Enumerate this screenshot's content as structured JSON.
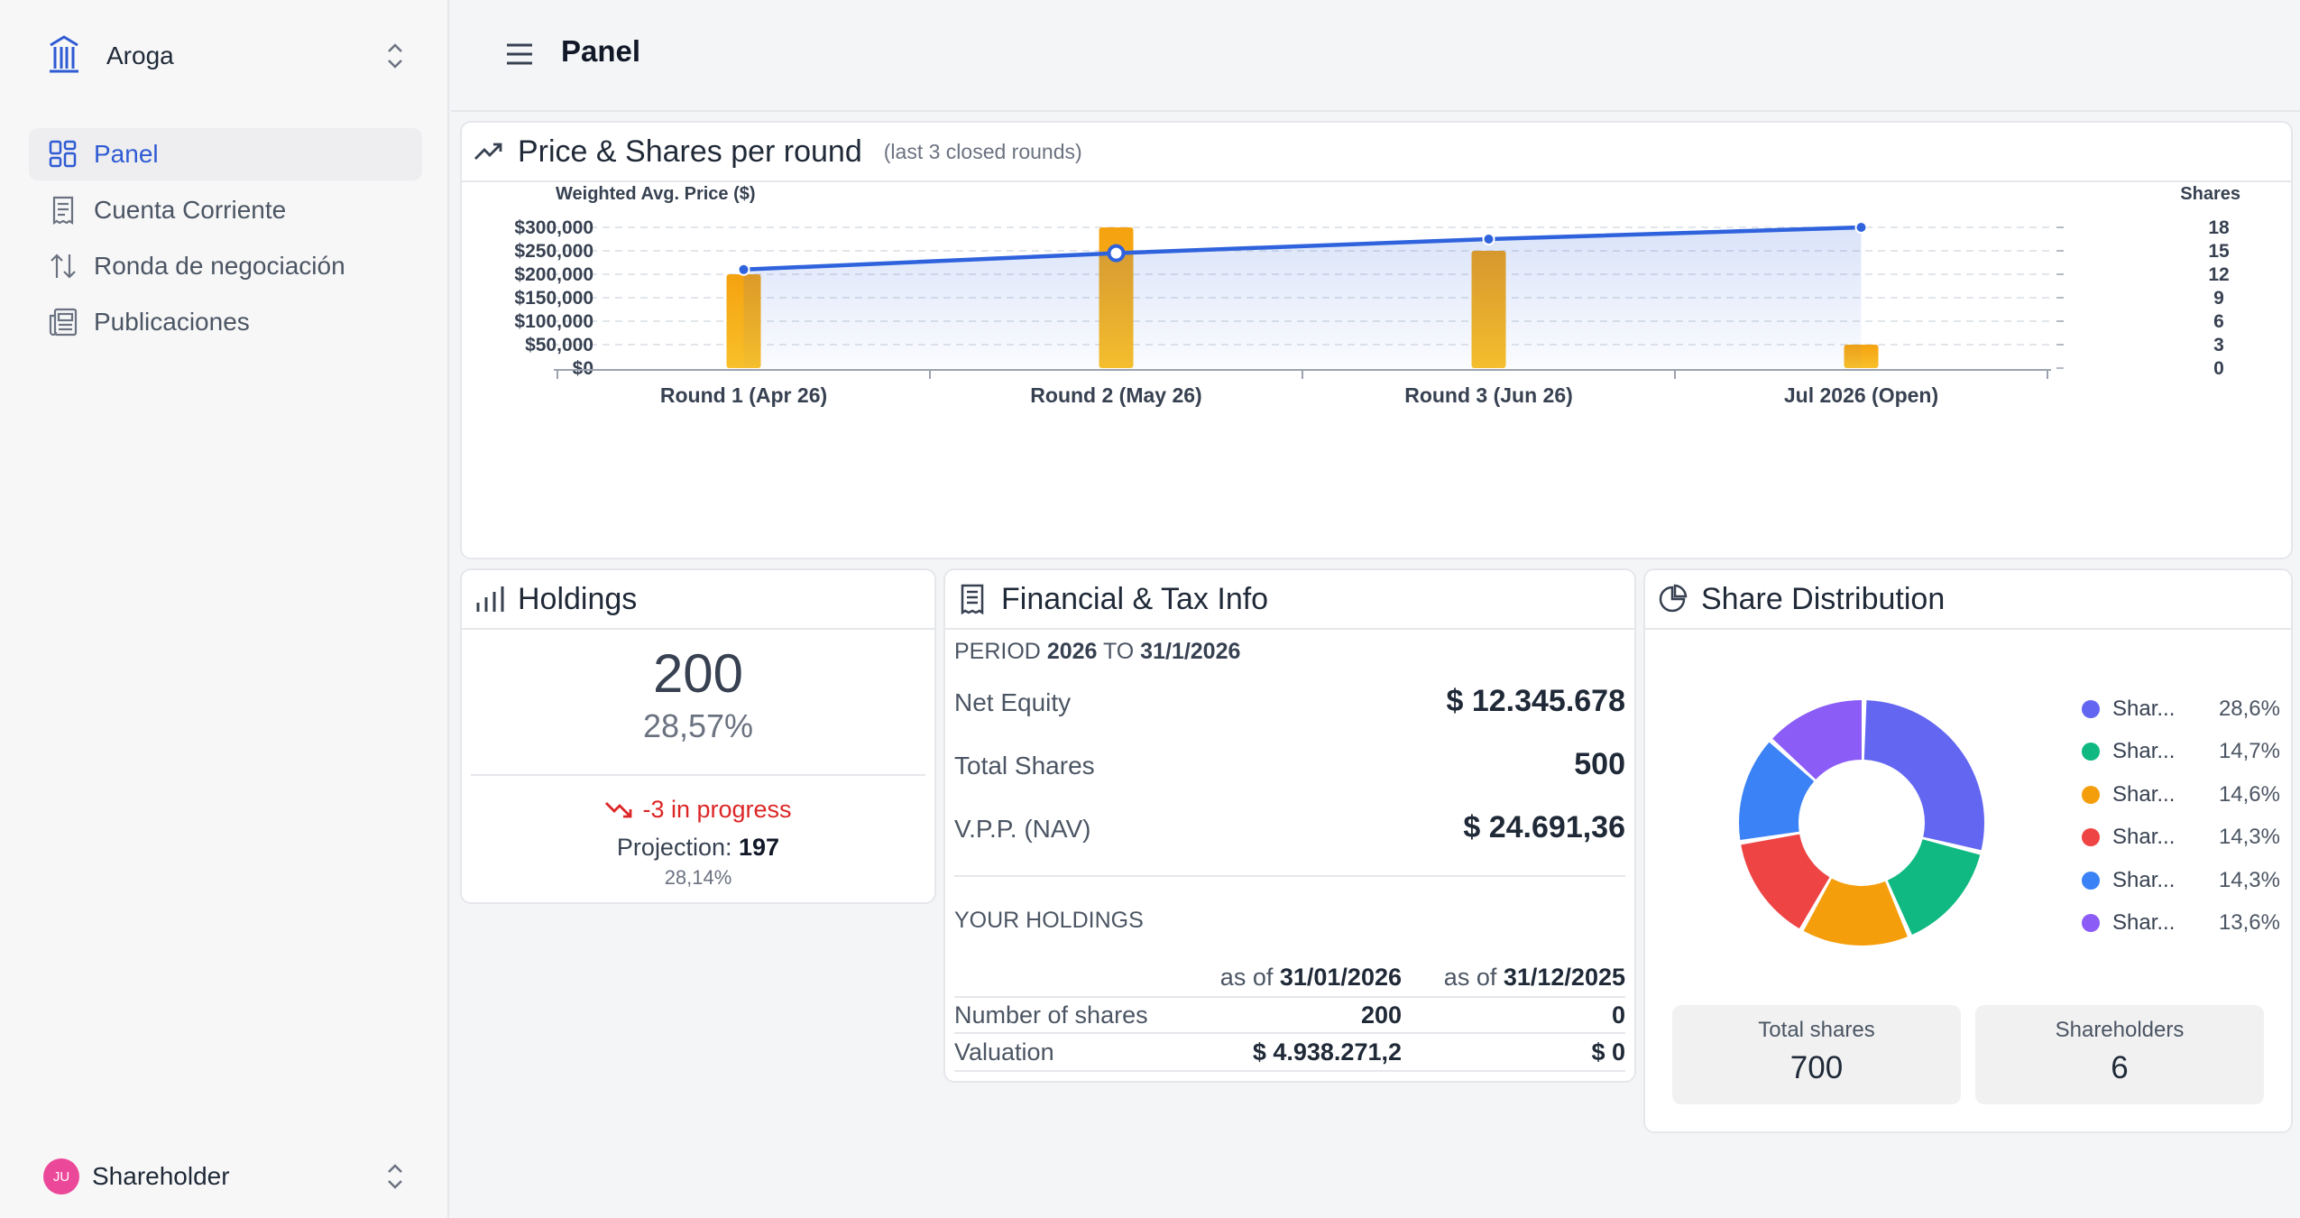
{
  "sidebar": {
    "org_name": "Aroga",
    "items": [
      {
        "label": "Panel",
        "icon": "dashboard-icon",
        "active": true
      },
      {
        "label": "Cuenta Corriente",
        "icon": "receipt-icon"
      },
      {
        "label": "Ronda de negociación",
        "icon": "arrows-updown-icon"
      },
      {
        "label": "Publicaciones",
        "icon": "newspaper-icon"
      }
    ],
    "user": {
      "initials": "JU",
      "role": "Shareholder"
    }
  },
  "header": {
    "title": "Panel"
  },
  "price_card": {
    "title": "Price & Shares per round",
    "subtitle": "(last 3 closed rounds)"
  },
  "chart_data": {
    "type": "bar",
    "title": "Price & Shares per round",
    "left_axis_label": "Weighted Avg. Price ($)",
    "right_axis_label": "Shares",
    "categories": [
      "Round 1 (Apr 26)",
      "Round 2 (May 26)",
      "Round 3 (Jun 26)",
      "Jul 2026 (Open)"
    ],
    "left_ticks": [
      "$0",
      "$50,000",
      "$100,000",
      "$150,000",
      "$200,000",
      "$250,000",
      "$300,000"
    ],
    "right_ticks": [
      "0",
      "3",
      "6",
      "9",
      "12",
      "15",
      "18"
    ],
    "left_ylim": [
      0,
      300000
    ],
    "right_ylim": [
      0,
      18
    ],
    "series": [
      {
        "kind": "bar",
        "axis": "right",
        "values": [
          12,
          18,
          15,
          3
        ],
        "color": "#f4a917"
      },
      {
        "kind": "line",
        "axis": "left",
        "values": [
          210000,
          245000,
          275000,
          300000
        ],
        "color": "#2f62dd"
      }
    ],
    "grid": true
  },
  "holdings": {
    "title": "Holdings",
    "shares": "200",
    "percent": "28,57%",
    "in_progress": "-3 in progress",
    "projection_label": "Projection:",
    "projection_value": "197",
    "projection_percent": "28,14%"
  },
  "financial": {
    "title": "Financial & Tax Info",
    "period_prefix": "PERIOD",
    "period_from": "2026",
    "period_to_word": "TO",
    "period_to": "31/1/2026",
    "rows": [
      {
        "label": "Net Equity",
        "value": "$ 12.345.678"
      },
      {
        "label": "Total Shares",
        "value": "500"
      },
      {
        "label": "V.P.P. (NAV)",
        "value": "$ 24.691,36"
      }
    ],
    "holdings_section": "YOUR HOLDINGS",
    "col_prefix": "as of",
    "col1_date": "31/01/2026",
    "col2_date": "31/12/2025",
    "table": [
      {
        "label": "Number of shares",
        "c1": "200",
        "c2": "0"
      },
      {
        "label": "Valuation",
        "c1": "$ 4.938.271,2",
        "c2": "$ 0"
      }
    ]
  },
  "distribution": {
    "title": "Share Distribution",
    "slices": [
      {
        "name": "Shar...",
        "value": 28.6,
        "label": "28,6%",
        "color": "#6366f1"
      },
      {
        "name": "Shar...",
        "value": 14.7,
        "label": "14,7%",
        "color": "#10b981"
      },
      {
        "name": "Shar...",
        "value": 14.6,
        "label": "14,6%",
        "color": "#f59e0b"
      },
      {
        "name": "Shar...",
        "value": 14.3,
        "label": "14,3%",
        "color": "#ef4444"
      },
      {
        "name": "Shar...",
        "value": 14.3,
        "label": "14,3%",
        "color": "#3b82f6"
      },
      {
        "name": "Shar...",
        "value": 13.6,
        "label": "13,6%",
        "color": "#8b5cf6"
      }
    ],
    "total_label": "Total shares",
    "total_value": "700",
    "holders_label": "Shareholders",
    "holders_value": "6"
  }
}
